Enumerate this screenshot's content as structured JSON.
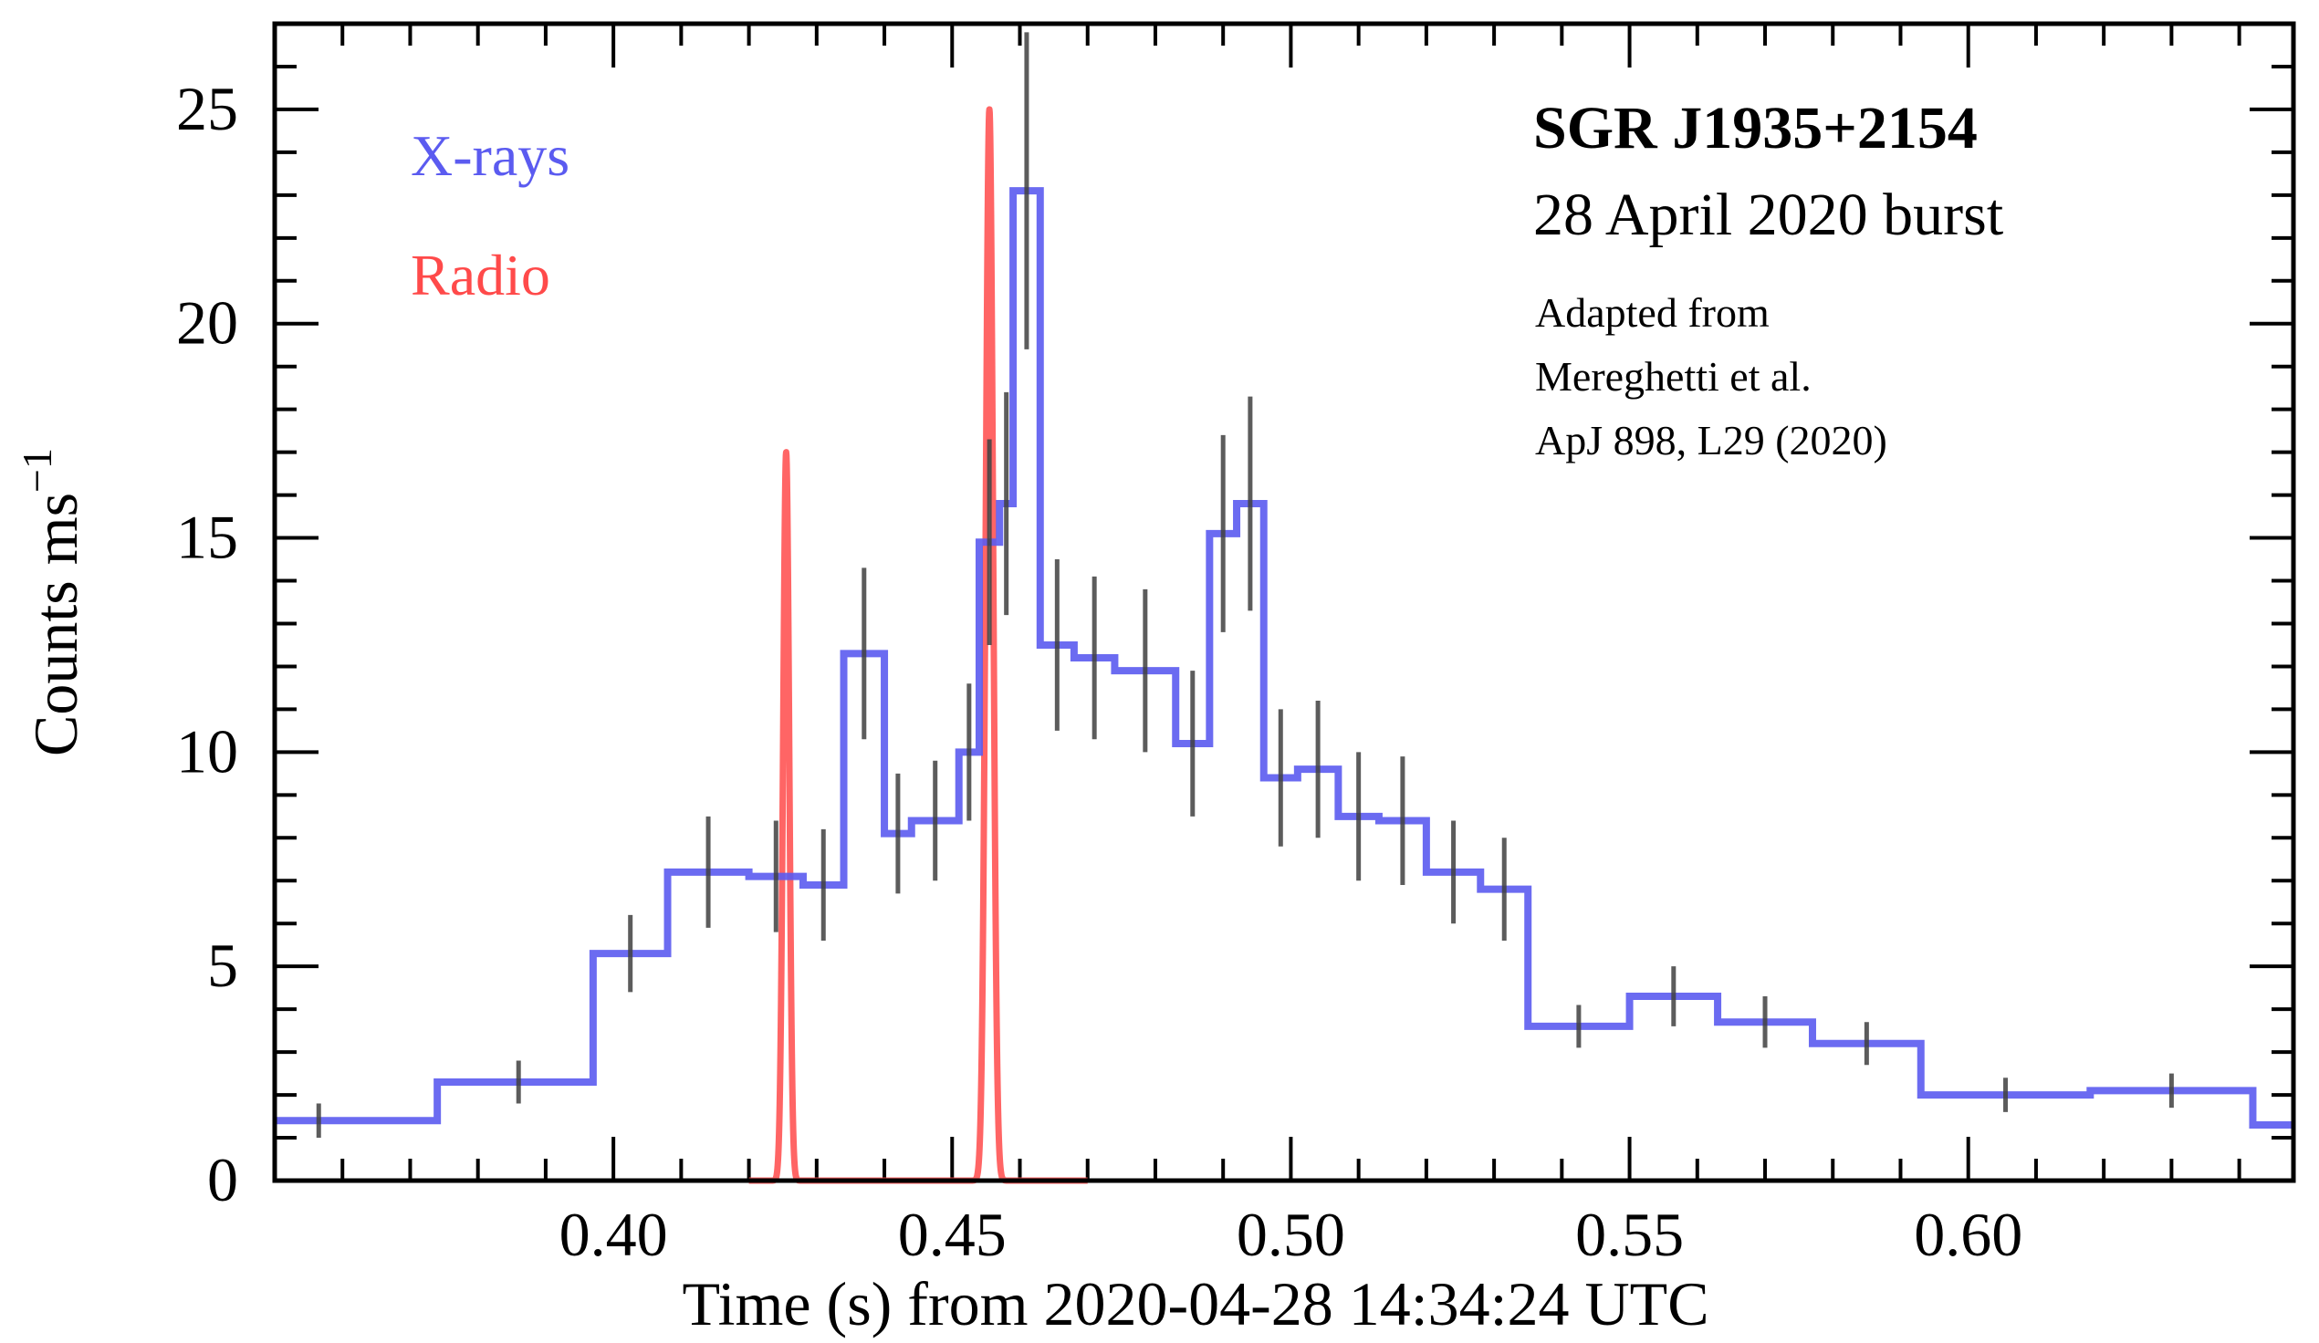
{
  "chart_data": {
    "type": "line",
    "title": "SGR J1935+2154",
    "subtitle": "28 April 2020 burst",
    "annotation_lines": [
      "Adapted from",
      "Mereghetti et al.",
      "ApJ 898, L29 (2020)"
    ],
    "xlabel": "Time (s) from 2020-04-28 14:34:24 UTC",
    "ylabel_base": "Counts ms",
    "ylabel_exponent": "−1",
    "xlim": [
      0.35,
      0.648
    ],
    "ylim": [
      0,
      27
    ],
    "x_ticks": [
      0.4,
      0.45,
      0.5,
      0.55,
      0.6
    ],
    "x_tick_labels": [
      "0.40",
      "0.45",
      "0.50",
      "0.55",
      "0.60"
    ],
    "y_ticks": [
      0,
      5,
      10,
      15,
      20,
      25
    ],
    "y_tick_labels": [
      "0",
      "5",
      "10",
      "15",
      "20",
      "25"
    ],
    "legend": [
      {
        "label": "X-rays",
        "color": "#5b5bf0"
      },
      {
        "label": "Radio",
        "color": "#ff4a4a"
      }
    ],
    "series": [
      {
        "name": "X-rays",
        "style": "step",
        "color": "#5b5bf0",
        "edges": [
          0.35,
          0.374,
          0.397,
          0.408,
          0.42,
          0.428,
          0.434,
          0.44,
          0.444,
          0.451,
          0.454,
          0.457,
          0.459,
          0.463,
          0.468,
          0.474,
          0.483,
          0.488,
          0.492,
          0.496,
          0.501,
          0.507,
          0.513,
          0.52,
          0.528,
          0.535,
          0.55,
          0.563,
          0.577,
          0.593,
          0.618,
          0.642,
          0.648
        ],
        "values": [
          1.4,
          2.3,
          5.3,
          7.2,
          7.1,
          6.9,
          12.3,
          8.1,
          8.4,
          10.0,
          14.9,
          15.8,
          23.1,
          12.5,
          12.2,
          11.9,
          10.2,
          15.1,
          15.8,
          9.4,
          9.6,
          8.5,
          8.4,
          7.2,
          6.8,
          3.6,
          4.3,
          3.7,
          3.2,
          2.0,
          2.1,
          1.3
        ]
      },
      {
        "name": "Radio",
        "style": "gaussian",
        "color": "#ff4a4a",
        "x_range": [
          0.42,
          0.47
        ],
        "peaks": [
          {
            "center": 0.4255,
            "amplitude": 17.0,
            "sigma": 0.00045
          },
          {
            "center": 0.4555,
            "amplitude": 25.0,
            "sigma": 0.00055
          }
        ]
      }
    ],
    "error_bars": [
      {
        "x": 0.3565,
        "y": 1.4,
        "err": 0.4
      },
      {
        "x": 0.386,
        "y": 2.3,
        "err": 0.5
      },
      {
        "x": 0.4025,
        "y": 5.3,
        "err": 0.9
      },
      {
        "x": 0.414,
        "y": 7.2,
        "err": 1.3
      },
      {
        "x": 0.424,
        "y": 7.1,
        "err": 1.3
      },
      {
        "x": 0.431,
        "y": 6.9,
        "err": 1.3
      },
      {
        "x": 0.437,
        "y": 12.3,
        "err": 2.0
      },
      {
        "x": 0.442,
        "y": 8.1,
        "err": 1.4
      },
      {
        "x": 0.4475,
        "y": 8.4,
        "err": 1.4
      },
      {
        "x": 0.4525,
        "y": 10.0,
        "err": 1.6
      },
      {
        "x": 0.4555,
        "y": 14.9,
        "err": 2.4
      },
      {
        "x": 0.458,
        "y": 15.8,
        "err": 2.6
      },
      {
        "x": 0.461,
        "y": 23.1,
        "err": 3.7
      },
      {
        "x": 0.4655,
        "y": 12.5,
        "err": 2.0
      },
      {
        "x": 0.471,
        "y": 12.2,
        "err": 1.9
      },
      {
        "x": 0.4785,
        "y": 11.9,
        "err": 1.9
      },
      {
        "x": 0.4855,
        "y": 10.2,
        "err": 1.7
      },
      {
        "x": 0.49,
        "y": 15.1,
        "err": 2.3
      },
      {
        "x": 0.494,
        "y": 15.8,
        "err": 2.5
      },
      {
        "x": 0.4985,
        "y": 9.4,
        "err": 1.6
      },
      {
        "x": 0.504,
        "y": 9.6,
        "err": 1.6
      },
      {
        "x": 0.51,
        "y": 8.5,
        "err": 1.5
      },
      {
        "x": 0.5165,
        "y": 8.4,
        "err": 1.5
      },
      {
        "x": 0.524,
        "y": 7.2,
        "err": 1.2
      },
      {
        "x": 0.5315,
        "y": 6.8,
        "err": 1.2
      },
      {
        "x": 0.5425,
        "y": 3.6,
        "err": 0.5
      },
      {
        "x": 0.5565,
        "y": 4.3,
        "err": 0.7
      },
      {
        "x": 0.57,
        "y": 3.7,
        "err": 0.6
      },
      {
        "x": 0.585,
        "y": 3.2,
        "err": 0.5
      },
      {
        "x": 0.6055,
        "y": 2.0,
        "err": 0.4
      },
      {
        "x": 0.63,
        "y": 2.1,
        "err": 0.4
      }
    ]
  }
}
